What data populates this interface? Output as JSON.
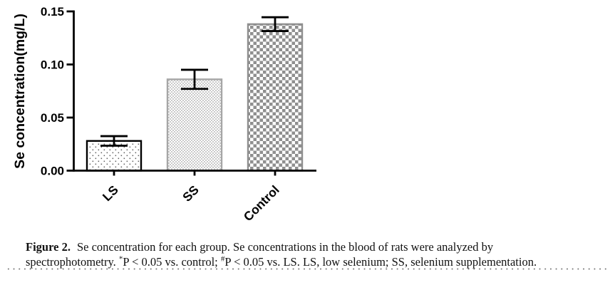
{
  "chart_data": {
    "type": "bar",
    "title": "",
    "xlabel": "",
    "ylabel": "Se concentration(mg/L)",
    "categories": [
      "LS",
      "SS",
      "Control"
    ],
    "values": [
      0.028,
      0.086,
      0.138
    ],
    "errors": [
      0.0045,
      0.009,
      0.0065
    ],
    "ylim": [
      0,
      0.15
    ],
    "yticks": [
      0,
      0.05,
      0.1,
      0.15
    ],
    "ytick_labels": [
      "0.00",
      "0.05",
      "0.10",
      "0.15"
    ],
    "grid": false,
    "legend": "none",
    "bar_fill_patterns": [
      "dots",
      "fine-checker",
      "coarse-checker"
    ],
    "style": {
      "axis_color": "#000000",
      "error_bar_color": "#000000",
      "bar_border_colors": [
        "#000000",
        "#a6a6a6",
        "#8f8f8f"
      ],
      "dot_color": "#5c5c5c",
      "fine_checker_color": "#cacaca",
      "coarse_checker_color": "#8f8f8f"
    }
  },
  "caption": {
    "label": "Figure 2.",
    "line1": "Se concentration for each group. Se concentrations in the blood of rats were analyzed by",
    "line2": {
      "pre": "spectrophotometry. ",
      "sup1": "*",
      "mid1": "P < 0.05 vs. control; ",
      "sup2": "#",
      "mid2": "P < 0.05 vs. LS. LS, low selenium; SS, selenium supplementation."
    }
  }
}
